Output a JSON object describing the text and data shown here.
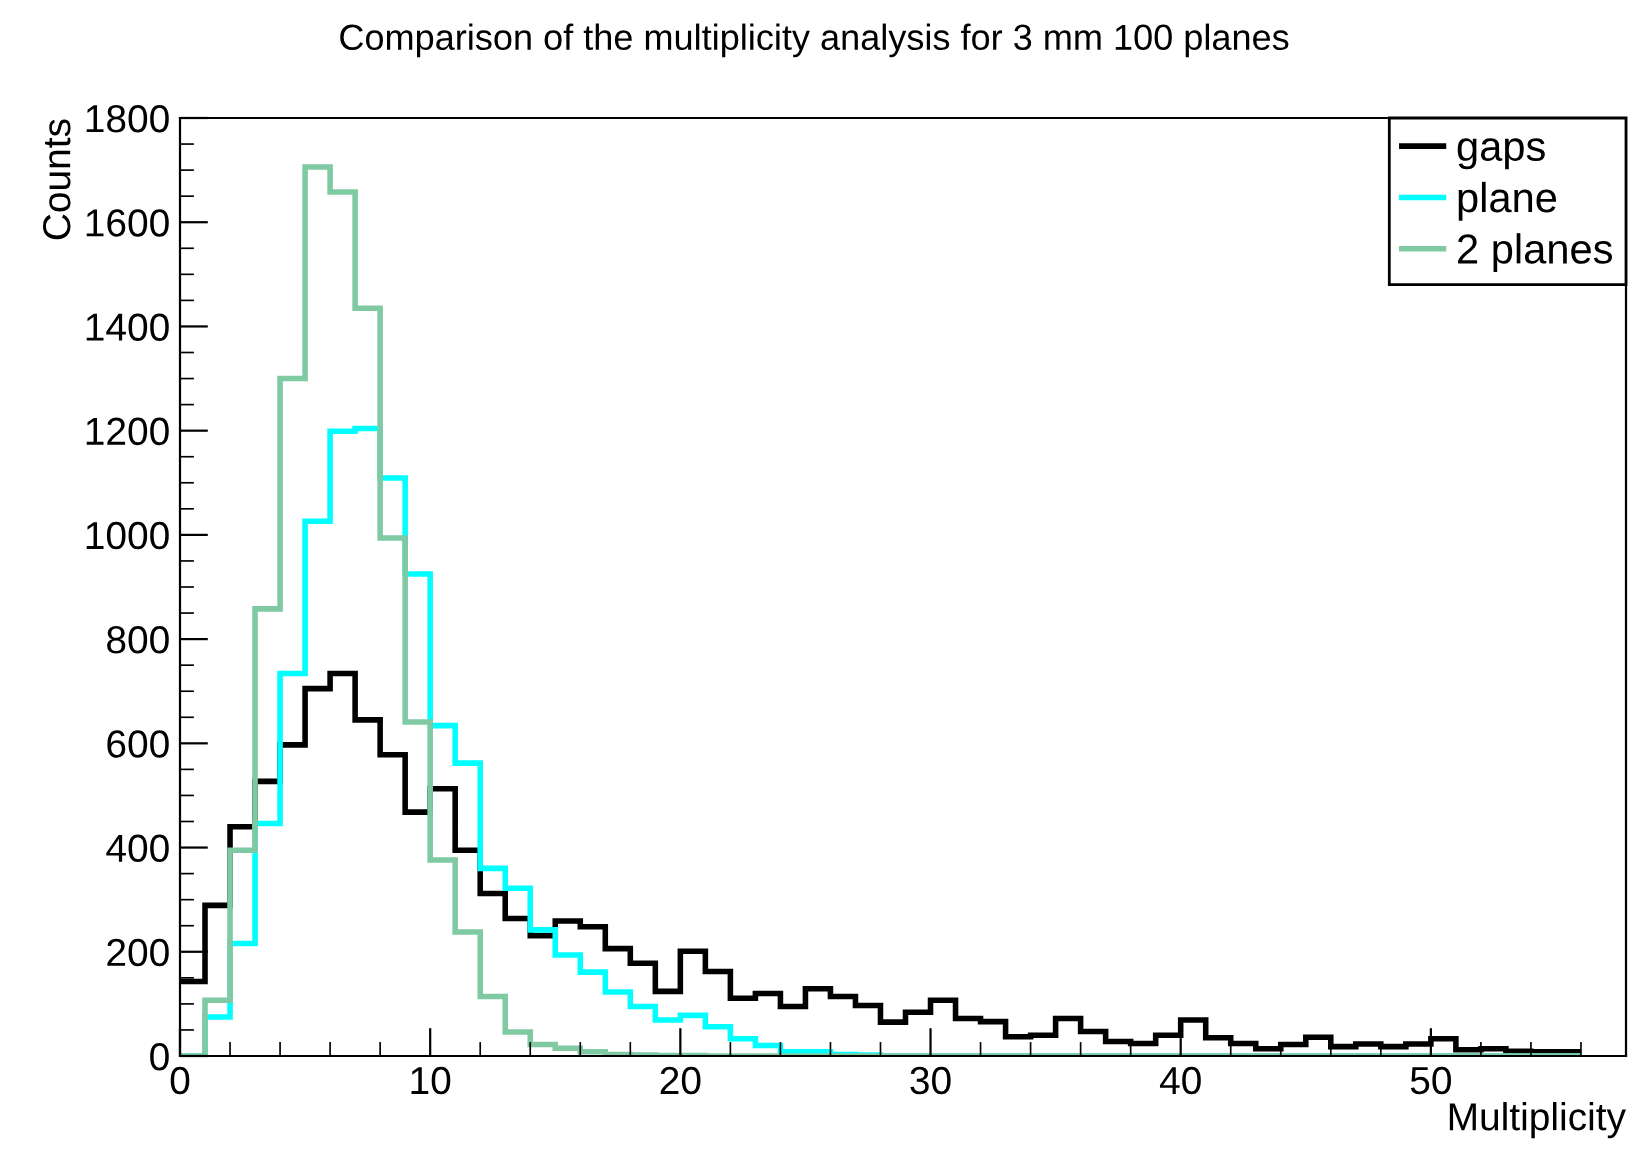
{
  "chart_data": {
    "type": "histogram",
    "title": "Comparison of the multiplicity analysis for 3 mm 100 planes",
    "xlabel": "Multiplicity",
    "ylabel": "Counts",
    "bins": [
      0,
      1,
      2,
      3,
      4,
      5,
      6,
      7,
      8,
      9,
      10,
      11,
      12,
      13,
      14,
      15,
      16,
      17,
      18,
      19,
      20,
      21,
      22,
      23,
      24,
      25,
      26,
      27,
      28,
      29,
      30,
      31,
      32,
      33,
      34,
      35,
      36,
      37,
      38,
      39,
      40,
      41,
      42,
      43,
      44,
      45,
      46,
      47,
      48,
      49,
      50,
      51,
      52,
      53,
      54,
      55,
      56
    ],
    "xlim": [
      0,
      57.8
    ],
    "xticks": [
      0,
      10,
      20,
      30,
      40,
      50
    ],
    "ylim": [
      0,
      1800
    ],
    "yticks": [
      0,
      200,
      400,
      600,
      800,
      1000,
      1200,
      1400,
      1600,
      1800
    ],
    "legend": "top right",
    "grid": false,
    "series": [
      {
        "name": "gaps",
        "color": "#000000",
        "values": [
          143,
          289,
          440,
          527,
          597,
          705,
          734,
          645,
          578,
          468,
          513,
          395,
          312,
          264,
          231,
          259,
          248,
          206,
          178,
          124,
          201,
          162,
          111,
          120,
          95,
          129,
          114,
          97,
          65,
          84,
          107,
          72,
          66,
          37,
          40,
          72,
          47,
          28,
          24,
          40,
          69,
          35,
          24,
          14,
          22,
          36,
          18,
          23,
          18,
          23,
          33,
          12,
          14,
          9,
          8,
          8
        ]
      },
      {
        "name": "plane",
        "color": "#00ffff",
        "values": [
          0,
          75,
          216,
          446,
          734,
          1026,
          1199,
          1204,
          1109,
          925,
          634,
          562,
          360,
          322,
          242,
          194,
          161,
          123,
          95,
          69,
          78,
          56,
          33,
          20,
          8,
          8,
          3,
          2,
          0,
          0,
          0,
          0,
          0,
          0,
          0,
          0,
          0,
          0,
          0,
          0,
          0,
          0,
          0,
          0,
          0,
          0,
          0,
          0,
          0,
          0,
          0,
          0,
          0,
          0,
          0,
          0
        ]
      },
      {
        "name": "2 planes",
        "color": "#7fc9a3",
        "values": [
          0,
          107,
          395,
          858,
          1300,
          1706,
          1658,
          1435,
          994,
          641,
          376,
          238,
          114,
          46,
          22,
          15,
          8,
          3,
          2,
          1,
          1,
          0,
          0,
          0,
          0,
          0,
          0,
          0,
          0,
          0,
          0,
          0,
          0,
          0,
          0,
          0,
          0,
          0,
          0,
          0,
          0,
          0,
          0,
          0,
          0,
          0,
          0,
          0,
          0,
          0,
          0,
          0,
          0,
          0,
          0,
          0
        ]
      }
    ]
  }
}
